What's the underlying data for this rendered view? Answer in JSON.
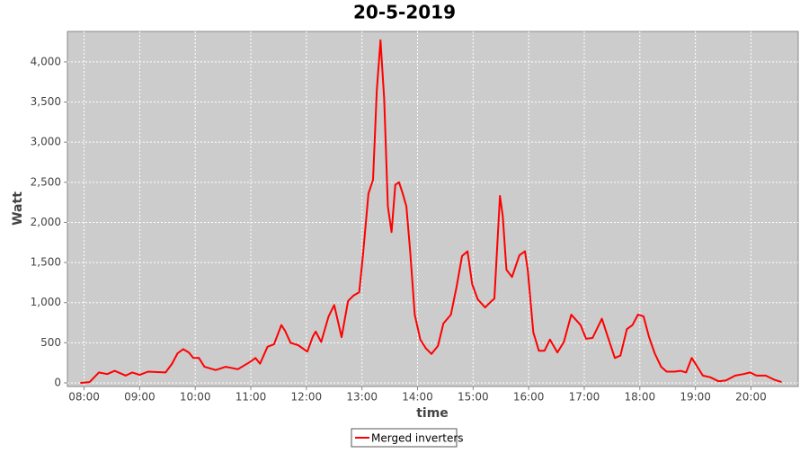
{
  "chart_data": {
    "type": "line",
    "title": "20-5-2019",
    "xlabel": "time",
    "ylabel": "Watt",
    "x": [
      "07:56",
      "08:06",
      "08:16",
      "08:25",
      "08:33",
      "08:45",
      "08:52",
      "09:00",
      "09:09",
      "09:28",
      "09:35",
      "09:41",
      "09:47",
      "09:53",
      "09:58",
      "10:04",
      "10:10",
      "10:22",
      "10:33",
      "10:46",
      "10:59",
      "11:05",
      "11:10",
      "11:18",
      "11:25",
      "11:33",
      "11:37",
      "11:43",
      "11:51",
      "12:01",
      "12:07",
      "12:10",
      "12:16",
      "12:24",
      "12:30",
      "12:38",
      "12:45",
      "12:51",
      "12:57",
      "13:01",
      "13:07",
      "13:12",
      "13:16",
      "13:20",
      "13:24",
      "13:28",
      "13:32",
      "13:36",
      "13:40",
      "13:44",
      "13:48",
      "13:52",
      "13:57",
      "14:03",
      "14:09",
      "14:15",
      "14:22",
      "14:28",
      "14:36",
      "14:42",
      "14:48",
      "14:54",
      "14:59",
      "15:05",
      "15:13",
      "15:19",
      "15:23",
      "15:29",
      "15:32",
      "15:36",
      "15:42",
      "15:50",
      "15:56",
      "15:59",
      "16:05",
      "16:11",
      "16:17",
      "16:23",
      "16:31",
      "16:38",
      "16:46",
      "16:56",
      "17:02",
      "17:09",
      "17:19",
      "17:25",
      "17:33",
      "17:39",
      "17:46",
      "17:52",
      "17:58",
      "18:04",
      "18:10",
      "18:16",
      "18:23",
      "18:29",
      "18:37",
      "18:44",
      "18:50",
      "18:56",
      "19:00",
      "19:08",
      "19:16",
      "19:25",
      "19:33",
      "19:43",
      "19:52",
      "19:59",
      "20:06",
      "20:16",
      "20:25",
      "20:33"
    ],
    "series": [
      {
        "name": "Merged inverters",
        "color": "#ff0000",
        "values": [
          0,
          10,
          130,
          110,
          150,
          90,
          130,
          100,
          140,
          130,
          240,
          370,
          420,
          380,
          310,
          310,
          200,
          160,
          200,
          170,
          260,
          310,
          240,
          450,
          480,
          720,
          650,
          500,
          470,
          390,
          580,
          640,
          510,
          830,
          970,
          570,
          1020,
          1090,
          1130,
          1580,
          2360,
          2530,
          3650,
          4270,
          3540,
          2200,
          1880,
          2470,
          2500,
          2360,
          2200,
          1640,
          850,
          540,
          430,
          360,
          460,
          740,
          850,
          1190,
          1580,
          1640,
          1230,
          1040,
          940,
          1010,
          1050,
          2330,
          2080,
          1410,
          1320,
          1590,
          1640,
          1410,
          630,
          400,
          400,
          540,
          380,
          510,
          850,
          720,
          550,
          560,
          800,
          590,
          310,
          340,
          670,
          720,
          850,
          830,
          570,
          370,
          200,
          140,
          140,
          150,
          130,
          310,
          240,
          90,
          70,
          20,
          30,
          90,
          110,
          130,
          90,
          90,
          40,
          10
        ]
      }
    ],
    "xlim": [
      "07:42",
      "20:51"
    ],
    "xticks": [
      "08:00",
      "09:00",
      "10:00",
      "11:00",
      "12:00",
      "13:00",
      "14:00",
      "15:00",
      "16:00",
      "17:00",
      "18:00",
      "19:00",
      "20:00"
    ],
    "ylim": [
      -45,
      4380
    ],
    "yticks": [
      0,
      500,
      {
        "value": 1000,
        "label": "1,000"
      },
      {
        "value": 1500,
        "label": "1,500"
      },
      {
        "value": 2000,
        "label": "2,000"
      },
      {
        "value": 2500,
        "label": "2,500"
      },
      {
        "value": 3000,
        "label": "3,000"
      },
      {
        "value": 3500,
        "label": "3,500"
      },
      {
        "value": 4000,
        "label": "4,000"
      }
    ],
    "grid": true,
    "legend": "bottom"
  }
}
